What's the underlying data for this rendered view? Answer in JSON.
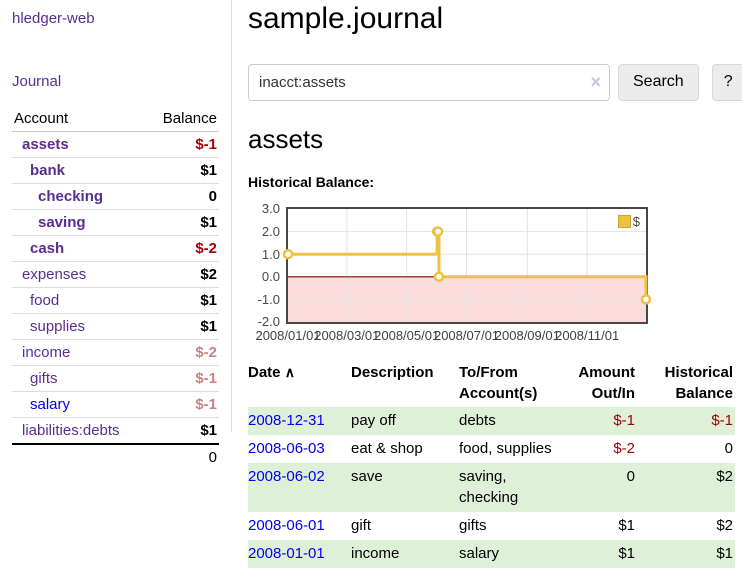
{
  "sidebar": {
    "brand": "hledger-web",
    "nav_journal": "Journal",
    "accounts_table": {
      "headers": {
        "account": "Account",
        "balance": "Balance"
      },
      "rows": [
        {
          "name": "assets",
          "indent": 0,
          "bold": true,
          "balance": "$-1"
        },
        {
          "name": "bank",
          "indent": 1,
          "bold": true,
          "balance": "$1"
        },
        {
          "name": "checking",
          "indent": 2,
          "bold": true,
          "balance": "0"
        },
        {
          "name": "saving",
          "indent": 2,
          "bold": true,
          "balance": "$1"
        },
        {
          "name": "cash",
          "indent": 1,
          "bold": true,
          "balance": "$-2"
        },
        {
          "name": "expenses",
          "indent": 0,
          "bold": false,
          "balance": "$2"
        },
        {
          "name": "food",
          "indent": 1,
          "bold": false,
          "balance": "$1"
        },
        {
          "name": "supplies",
          "indent": 1,
          "bold": false,
          "balance": "$1"
        },
        {
          "name": "income",
          "indent": 0,
          "bold": false,
          "balance": "$-2"
        },
        {
          "name": "gifts",
          "indent": 1,
          "bold": false,
          "balance": "$-1"
        },
        {
          "name": "salary",
          "indent": 1,
          "bold": false,
          "balance": "$-1",
          "unvisited": true
        },
        {
          "name": "liabilities:debts",
          "indent": 0,
          "bold": false,
          "balance": "$1"
        }
      ],
      "total": "0"
    }
  },
  "header": {
    "title": "sample.journal",
    "search": {
      "value": "inacct:assets",
      "placeholder": "",
      "clear_icon": "×",
      "search_label": "Search",
      "help_label": "?"
    }
  },
  "account_page": {
    "heading": "assets",
    "chart_label": "Historical Balance:"
  },
  "chart_data": {
    "type": "line",
    "step": true,
    "title": "Historical Balance",
    "series": [
      {
        "name": "$",
        "color": "#edc240",
        "points": [
          [
            "2008-01-01",
            1
          ],
          [
            "2008-06-01",
            2
          ],
          [
            "2008-06-02",
            2
          ],
          [
            "2008-06-03",
            0
          ],
          [
            "2008-12-31",
            -1
          ]
        ]
      }
    ],
    "x_range": [
      "2008-01-01",
      "2008-12-31"
    ],
    "ylim": [
      -2,
      3
    ],
    "y_ticks": [
      "3.0",
      "2.0",
      "1.0",
      "0.0",
      "-1.0",
      "-2.0"
    ],
    "x_ticks": [
      "2008/01/01",
      "2008/03/01",
      "2008/05/01",
      "2008/07/01",
      "2008/09/01",
      "2008/11/01"
    ],
    "legend_position": "top-right",
    "grid": true,
    "grid_color": "#e3e3e3",
    "marker_fill": "#ffffff",
    "negative_region_fill": "#fadcdc",
    "zero_line_color": "#8b0000"
  },
  "register_table": {
    "headers": {
      "date": "Date",
      "description": "Description",
      "accounts": "To/From Account(s)",
      "amount": "Amount Out/In",
      "balance": "Historical Balance"
    },
    "sort_icon": "∧",
    "rows": [
      {
        "date": "2008-12-31",
        "description": "pay off",
        "accounts": "debts",
        "amount": "$-1",
        "balance": "$-1"
      },
      {
        "date": "2008-06-03",
        "description": "eat & shop",
        "accounts": "food, supplies",
        "amount": "$-2",
        "balance": "0"
      },
      {
        "date": "2008-06-02",
        "description": "save",
        "accounts": "saving, checking",
        "amount": "0",
        "balance": "$2"
      },
      {
        "date": "2008-06-01",
        "description": "gift",
        "accounts": "gifts",
        "amount": "$1",
        "balance": "$2"
      },
      {
        "date": "2008-01-01",
        "description": "income",
        "accounts": "salary",
        "amount": "$1",
        "balance": "$1"
      }
    ]
  },
  "colors": {
    "accent_purple": "#5c2d91",
    "link_blue": "#0000ee",
    "negative_strong": "#a40000",
    "negative_soft": "#c98383",
    "row_highlight_green": "#dff0d8",
    "series_gold": "#edc240",
    "negative_region_pink": "#fadcdc",
    "zero_line_red": "#8b0000"
  }
}
